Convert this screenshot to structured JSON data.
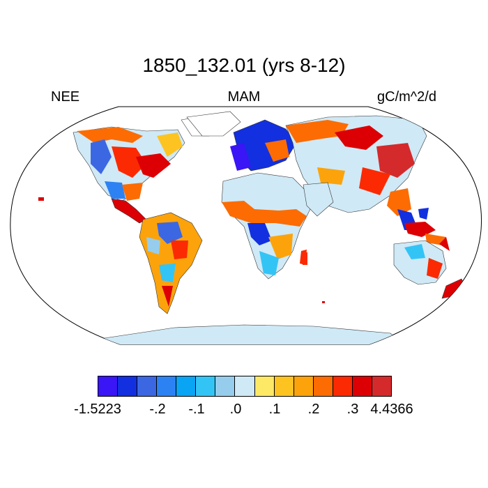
{
  "title": "1850_132.01 (yrs 8-12)",
  "left_label": "NEE",
  "center_label": "MAM",
  "right_label": "gC/m^2/d",
  "colorbar": {
    "colors": [
      "#3a15f5",
      "#1230e0",
      "#3c67e3",
      "#2d82f3",
      "#0aa4f5",
      "#33c4f6",
      "#96cdec",
      "#cfe9f6",
      "#fde965",
      "#fdc321",
      "#fca30b",
      "#fc6c03",
      "#fb2a02",
      "#dc0004",
      "#d42a2c"
    ],
    "labels": [
      "-1.5223",
      "-.2",
      "-.1",
      ".0",
      ".1",
      ".2",
      ".3",
      "4.4366"
    ]
  }
}
